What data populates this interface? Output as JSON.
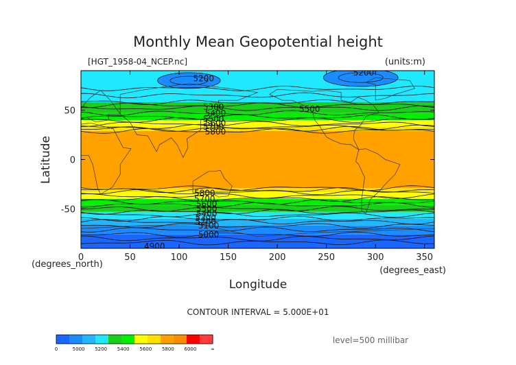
{
  "chart_data": {
    "type": "heatmap",
    "title": "Monthly Mean Geopotential height",
    "subtitle": "[HGT_1958-04_NCEP.nc]",
    "units": "(units:m)",
    "xlabel": "Longitude",
    "ylabel": "Latitude",
    "x_unit_label": "(degrees_east)",
    "y_unit_label": "(degrees_north)",
    "xlim": [
      0,
      360
    ],
    "ylim": [
      -90,
      90
    ],
    "x_ticks": [
      0,
      50,
      100,
      150,
      200,
      250,
      300,
      350
    ],
    "y_ticks": [
      -50,
      0,
      50
    ],
    "contour_interval_text": "CONTOUR INTERVAL = 5.000E+01",
    "level_text": "level=500 millibar",
    "contour_labels": [
      {
        "text": "5200",
        "lon": 125,
        "lat": 82
      },
      {
        "text": "5200",
        "lon": 288,
        "lat": 88
      },
      {
        "text": "5300",
        "lon": 135,
        "lat": 53
      },
      {
        "text": "5400",
        "lon": 137,
        "lat": 47
      },
      {
        "text": "5500",
        "lon": 135,
        "lat": 41
      },
      {
        "text": "5600",
        "lon": 137,
        "lat": 37
      },
      {
        "text": "5700",
        "lon": 135,
        "lat": 33
      },
      {
        "text": "5800",
        "lon": 137,
        "lat": 28
      },
      {
        "text": "5500",
        "lon": 233,
        "lat": 51
      },
      {
        "text": "5800",
        "lon": 126,
        "lat": -34
      },
      {
        "text": "5700",
        "lon": 126,
        "lat": -40
      },
      {
        "text": "5600",
        "lon": 128,
        "lat": -45
      },
      {
        "text": "5500",
        "lon": 128,
        "lat": -50
      },
      {
        "text": "5400",
        "lon": 128,
        "lat": -55
      },
      {
        "text": "5300",
        "lon": 127,
        "lat": -59
      },
      {
        "text": "5200",
        "lon": 127,
        "lat": -63
      },
      {
        "text": "5100",
        "lon": 130,
        "lat": -67
      },
      {
        "text": "5000",
        "lon": 130,
        "lat": -76
      },
      {
        "text": "4900",
        "lon": 75,
        "lat": -88
      }
    ],
    "colorbar": {
      "tick_labels": [
        "0",
        "5000",
        "5200",
        "5400",
        "5600",
        "5800",
        "6000",
        "∞"
      ],
      "colors": [
        "#1a66ff",
        "#1a8cff",
        "#21b6ff",
        "#1fe8ff",
        "#1acf1a",
        "#00f000",
        "#ffff00",
        "#ffe100",
        "#ffa200",
        "#ff8c00",
        "#ff0000",
        "#ff3c3c"
      ]
    },
    "bands": [
      {
        "lat": [
          -90,
          -76
        ],
        "color": "#1a66ff"
      },
      {
        "lat": [
          -76,
          -67
        ],
        "color": "#1a8cff"
      },
      {
        "lat": [
          -67,
          -60
        ],
        "color": "#21b6ff"
      },
      {
        "lat": [
          -60,
          -53
        ],
        "color": "#1fe8ff"
      },
      {
        "lat": [
          -53,
          -46
        ],
        "color": "#1acf1a"
      },
      {
        "lat": [
          -46,
          -40
        ],
        "color": "#00f000"
      },
      {
        "lat": [
          -40,
          -33
        ],
        "color": "#ffff00"
      },
      {
        "lat": [
          -33,
          -29
        ],
        "color": "#ffe100"
      },
      {
        "lat": [
          -29,
          29
        ],
        "color": "#ffa200"
      },
      {
        "lat": [
          29,
          33
        ],
        "color": "#ffe100"
      },
      {
        "lat": [
          33,
          40
        ],
        "color": "#ffff00"
      },
      {
        "lat": [
          40,
          47
        ],
        "color": "#00f000"
      },
      {
        "lat": [
          47,
          58
        ],
        "color": "#1acf1a"
      },
      {
        "lat": [
          58,
          90
        ],
        "color": "#1fe8ff"
      }
    ],
    "lows": [
      {
        "lon": 110,
        "lat": 80,
        "rlon": 32,
        "rlat": 8,
        "color": "#1a8cff"
      },
      {
        "lon": 285,
        "lat": 83,
        "rlon": 38,
        "rlat": 9,
        "color": "#1a8cff"
      }
    ]
  }
}
